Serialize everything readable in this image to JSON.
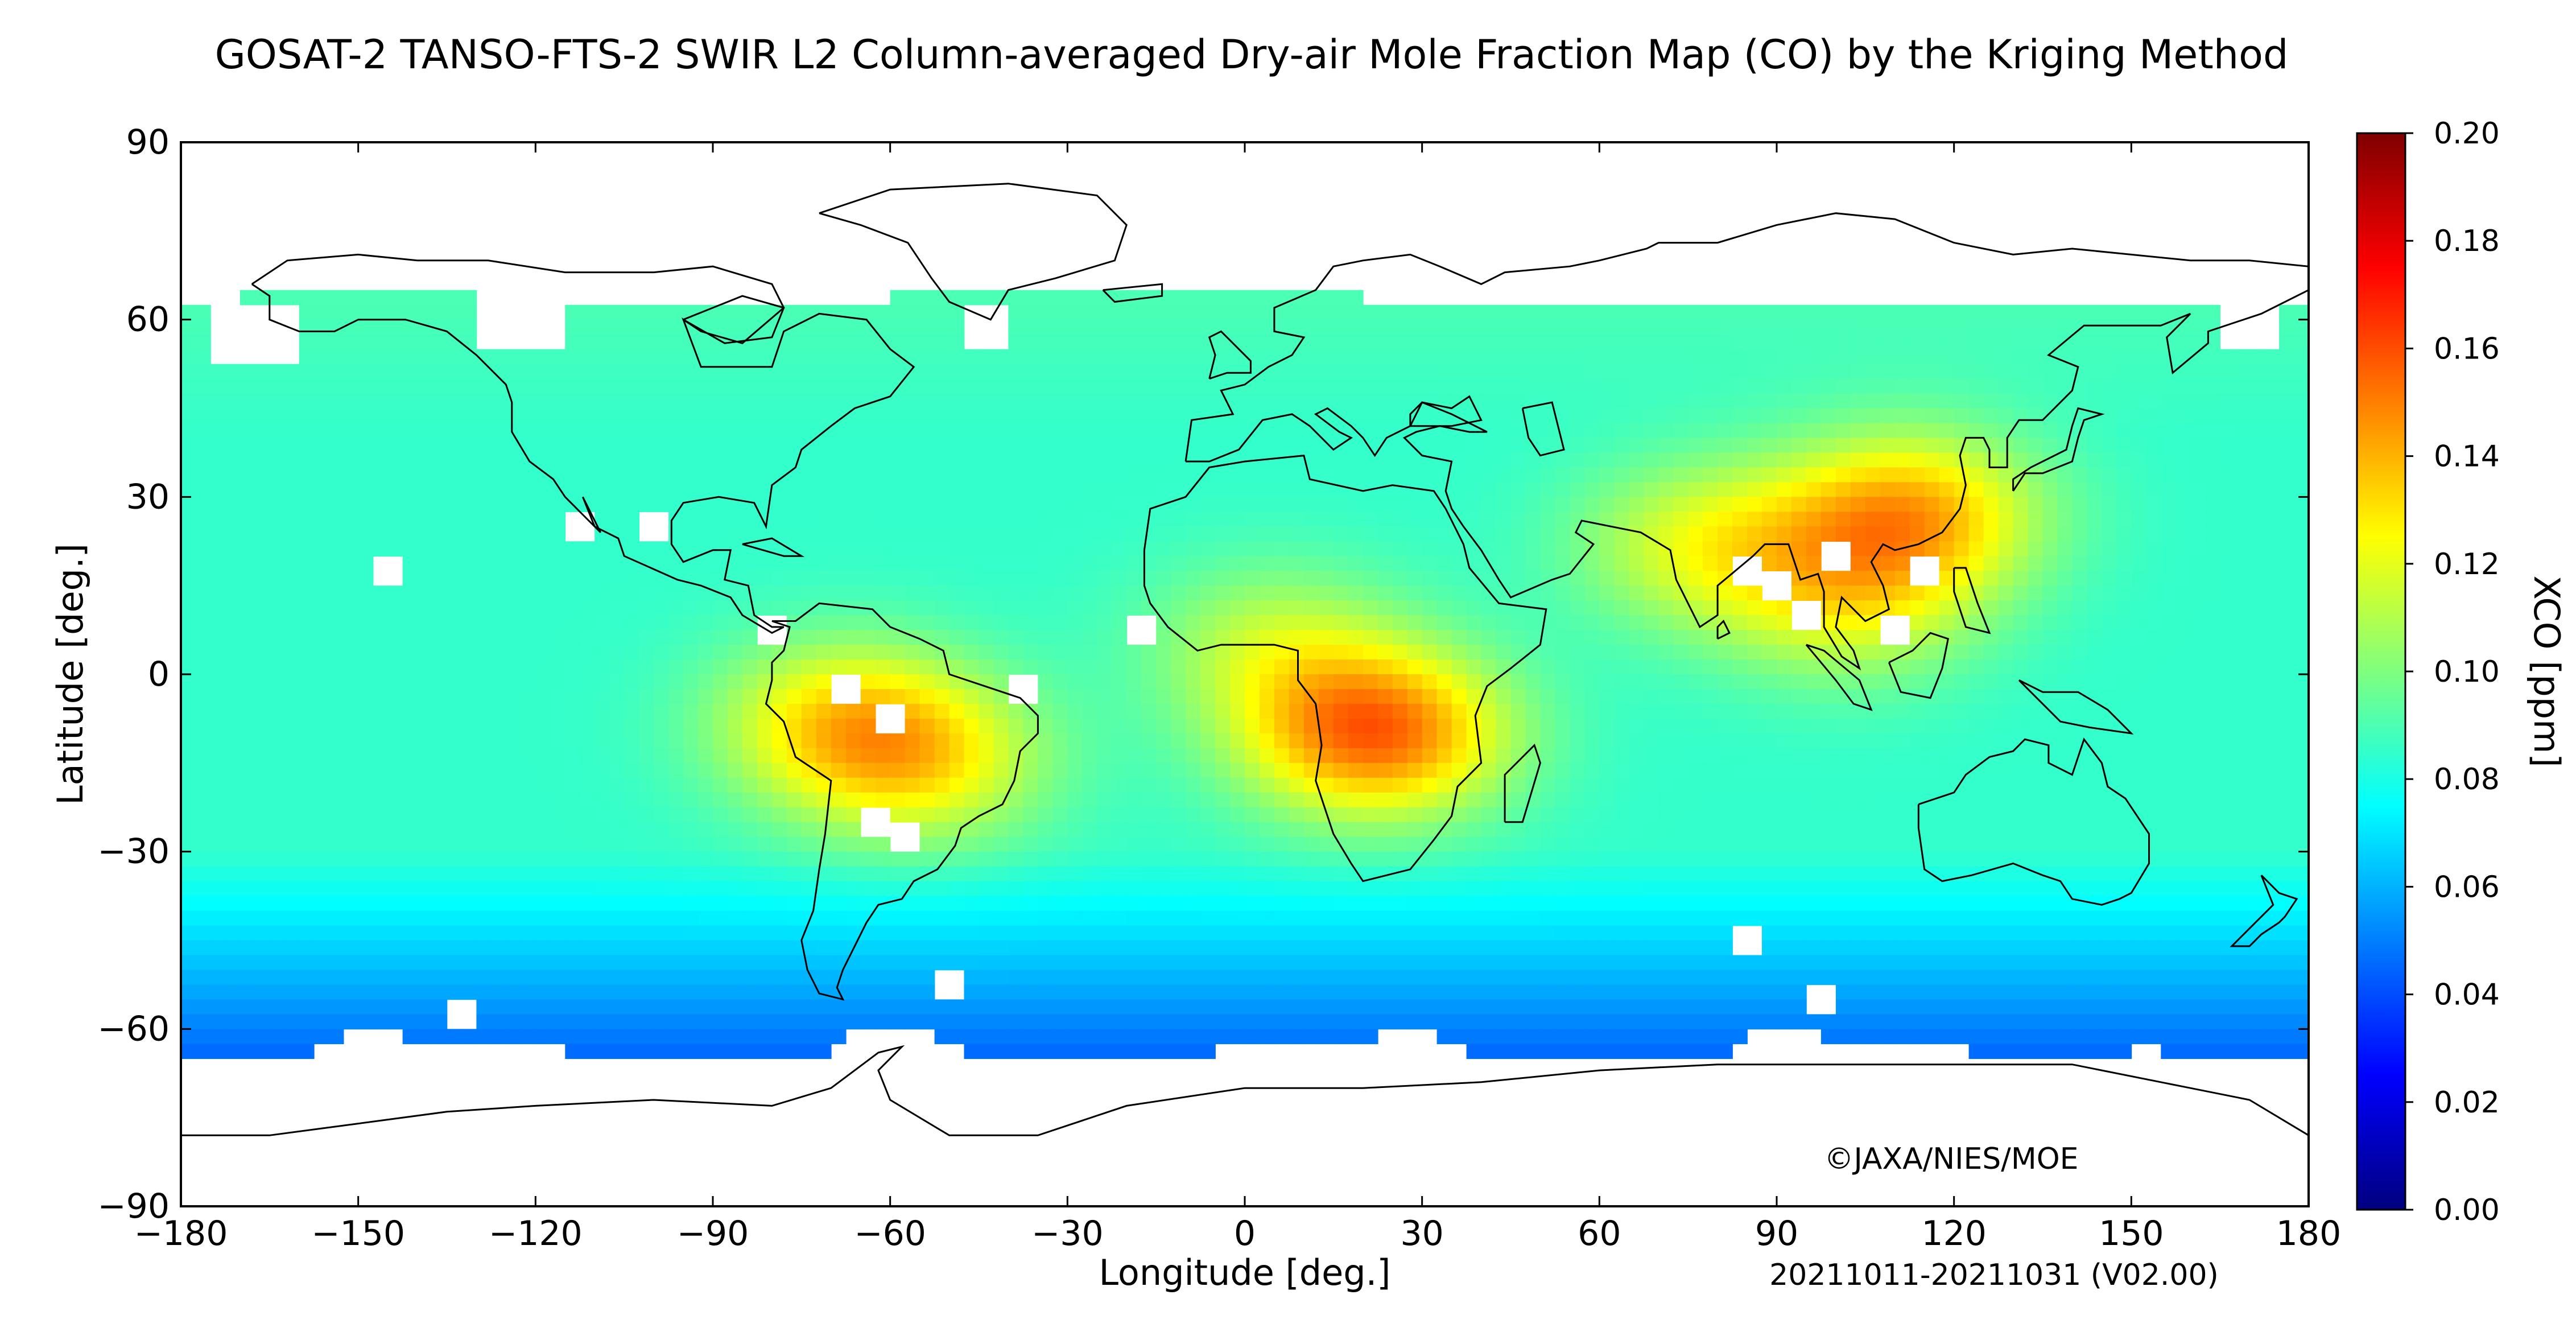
{
  "title": "GOSAT-2 TANSO-FTS-2 SWIR L2 Column-averaged Dry-air Mole Fraction Map (CO) by the Kriging Method",
  "copyright": "©JAXA/NIES/MOE",
  "period": "20211011-20211031 (V02.00)",
  "map": {
    "type": "heatmap",
    "projection": "equirectangular",
    "xlabel": "Longitude [deg.]",
    "ylabel": "Latitude [deg.]",
    "xlim": [
      -180,
      180
    ],
    "ylim": [
      -90,
      90
    ],
    "xticks": [
      -180,
      -150,
      -120,
      -90,
      -60,
      -30,
      0,
      30,
      60,
      90,
      120,
      150,
      180
    ],
    "yticks": [
      -90,
      -60,
      -30,
      0,
      30,
      60,
      90
    ],
    "xtick_labels": [
      "−180",
      "−150",
      "−120",
      "−90",
      "−60",
      "−30",
      "0",
      "30",
      "60",
      "90",
      "120",
      "150",
      "180"
    ],
    "ytick_labels": [
      "−90",
      "−60",
      "−30",
      "0",
      "30",
      "60",
      "90"
    ],
    "grid": false
  },
  "colorbar": {
    "label": "XCO [ppm]",
    "min": 0.0,
    "max": 0.2,
    "ticks": [
      "0.00",
      "0.02",
      "0.04",
      "0.06",
      "0.08",
      "0.10",
      "0.12",
      "0.14",
      "0.16",
      "0.18",
      "0.20"
    ],
    "colormap": "jet",
    "colors": [
      "#00007f",
      "#0000ff",
      "#007fff",
      "#00ffff",
      "#7fff7f",
      "#ffff00",
      "#ff7f00",
      "#ff0000",
      "#7f0000"
    ]
  },
  "chart_data": {
    "type": "heatmap",
    "quantity": "XCO [ppm]",
    "background_value": 0.085,
    "hotspots": [
      {
        "name": "Central Africa",
        "lon": 22,
        "lat": -10,
        "value": 0.155
      },
      {
        "name": "Amazon",
        "lon": -68,
        "lat": -8,
        "value": 0.125
      },
      {
        "name": "Brazil",
        "lon": -55,
        "lat": -15,
        "value": 0.12
      },
      {
        "name": "East China",
        "lon": 112,
        "lat": 27,
        "value": 0.14
      },
      {
        "name": "India",
        "lon": 78,
        "lat": 22,
        "value": 0.118
      },
      {
        "name": "West Africa",
        "lon": 5,
        "lat": 5,
        "value": 0.11
      },
      {
        "name": "Southeast Asia",
        "lon": 102,
        "lat": 12,
        "value": 0.115
      }
    ],
    "lowzones": [
      {
        "name": "Southern Ocean",
        "lat_min": -70,
        "lat_max": -48,
        "value": 0.06
      }
    ]
  }
}
